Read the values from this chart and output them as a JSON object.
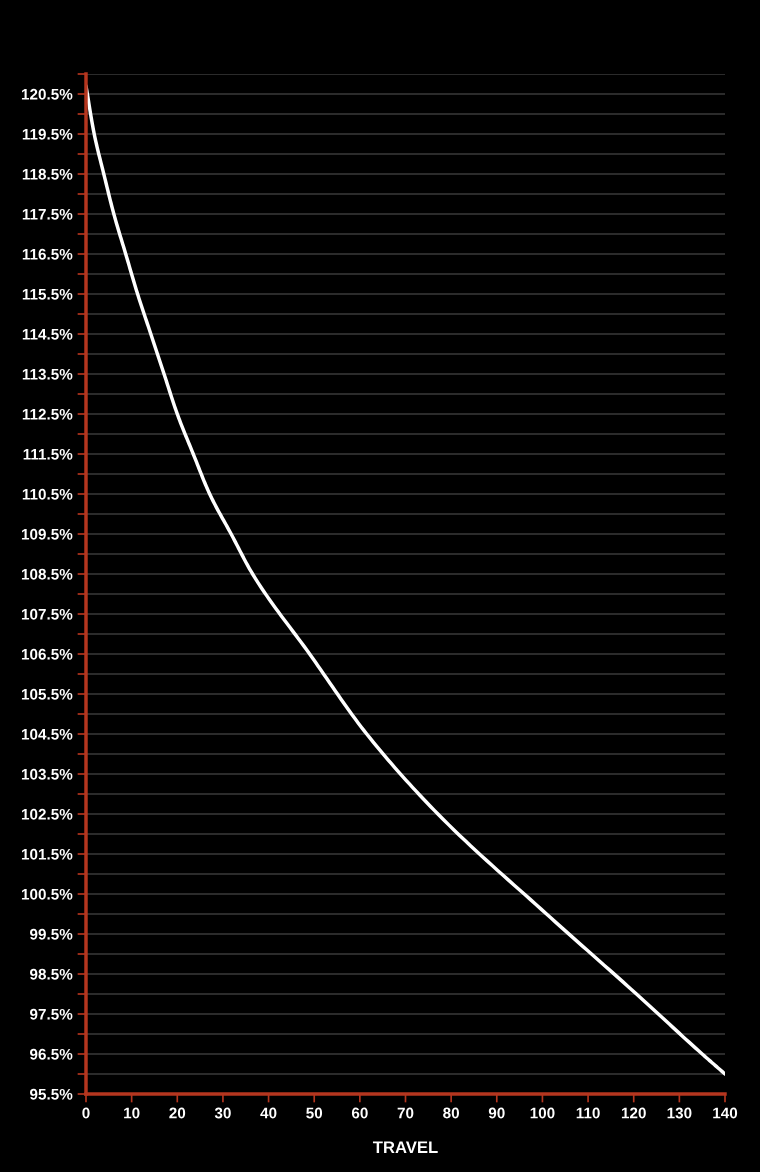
{
  "chart_data": {
    "type": "line",
    "xlabel": "TRAVEL",
    "x": [
      0,
      1.8,
      3.9,
      6.1,
      8.7,
      11.3,
      14.2,
      17.1,
      20.0,
      23.5,
      27.1,
      31.8,
      36.5,
      49.0,
      61.5,
      77.1,
      100.9,
      120.6,
      135,
      140
    ],
    "series": [
      {
        "color": "#ffffff",
        "values": [
          120.7,
          119.5,
          118.5,
          117.5,
          116.5,
          115.5,
          114.5,
          113.5,
          112.5,
          111.5,
          110.5,
          109.5,
          108.5,
          106.5,
          104.5,
          102.5,
          100.0,
          98.0,
          96.5,
          96.0
        ]
      }
    ],
    "xlim": [
      0,
      140
    ],
    "xticks": [
      0,
      10,
      20,
      30,
      40,
      50,
      60,
      70,
      80,
      90,
      100,
      110,
      120,
      130,
      140
    ],
    "ylim": [
      95.5,
      121
    ],
    "yticks": [
      {
        "value": 95.5,
        "label": "95.5%"
      },
      {
        "value": 96,
        "label": null
      },
      {
        "value": 96.5,
        "label": "96.5%"
      },
      {
        "value": 97,
        "label": null
      },
      {
        "value": 97.5,
        "label": "97.5%"
      },
      {
        "value": 98,
        "label": null
      },
      {
        "value": 98.5,
        "label": "98.5%"
      },
      {
        "value": 99,
        "label": null
      },
      {
        "value": 99.5,
        "label": "99.5%"
      },
      {
        "value": 100,
        "label": null
      },
      {
        "value": 100.5,
        "label": "100.5%"
      },
      {
        "value": 101,
        "label": null
      },
      {
        "value": 101.5,
        "label": "101.5%"
      },
      {
        "value": 102,
        "label": null
      },
      {
        "value": 102.5,
        "label": "102.5%"
      },
      {
        "value": 103,
        "label": null
      },
      {
        "value": 103.5,
        "label": "103.5%"
      },
      {
        "value": 104,
        "label": null
      },
      {
        "value": 104.5,
        "label": "104.5%"
      },
      {
        "value": 105,
        "label": null
      },
      {
        "value": 105.5,
        "label": "105.5%"
      },
      {
        "value": 106,
        "label": null
      },
      {
        "value": 106.5,
        "label": "106.5%"
      },
      {
        "value": 107,
        "label": null
      },
      {
        "value": 107.5,
        "label": "107.5%"
      },
      {
        "value": 108,
        "label": null
      },
      {
        "value": 108.5,
        "label": "108.5%"
      },
      {
        "value": 109,
        "label": null
      },
      {
        "value": 109.5,
        "label": "109.5%"
      },
      {
        "value": 110,
        "label": null
      },
      {
        "value": 110.5,
        "label": "110.5%"
      },
      {
        "value": 111,
        "label": null
      },
      {
        "value": 111.5,
        "label": "111.5%"
      },
      {
        "value": 112,
        "label": null
      },
      {
        "value": 112.5,
        "label": "112.5%"
      },
      {
        "value": 113,
        "label": null
      },
      {
        "value": 113.5,
        "label": "113.5%"
      },
      {
        "value": 114,
        "label": null
      },
      {
        "value": 114.5,
        "label": "114.5%"
      },
      {
        "value": 115,
        "label": null
      },
      {
        "value": 115.5,
        "label": "115.5%"
      },
      {
        "value": 116,
        "label": null
      },
      {
        "value": 116.5,
        "label": "116.5%"
      },
      {
        "value": 117,
        "label": null
      },
      {
        "value": 117.5,
        "label": "117.5%"
      },
      {
        "value": 118,
        "label": null
      },
      {
        "value": 118.5,
        "label": "118.5%"
      },
      {
        "value": 119,
        "label": null
      },
      {
        "value": 119.5,
        "label": "119.5%"
      },
      {
        "value": 120,
        "label": null
      },
      {
        "value": 120.5,
        "label": "120.5%"
      },
      {
        "value": 121,
        "label": null
      }
    ],
    "grid": "y",
    "marker": "none",
    "line_style": "solid"
  }
}
